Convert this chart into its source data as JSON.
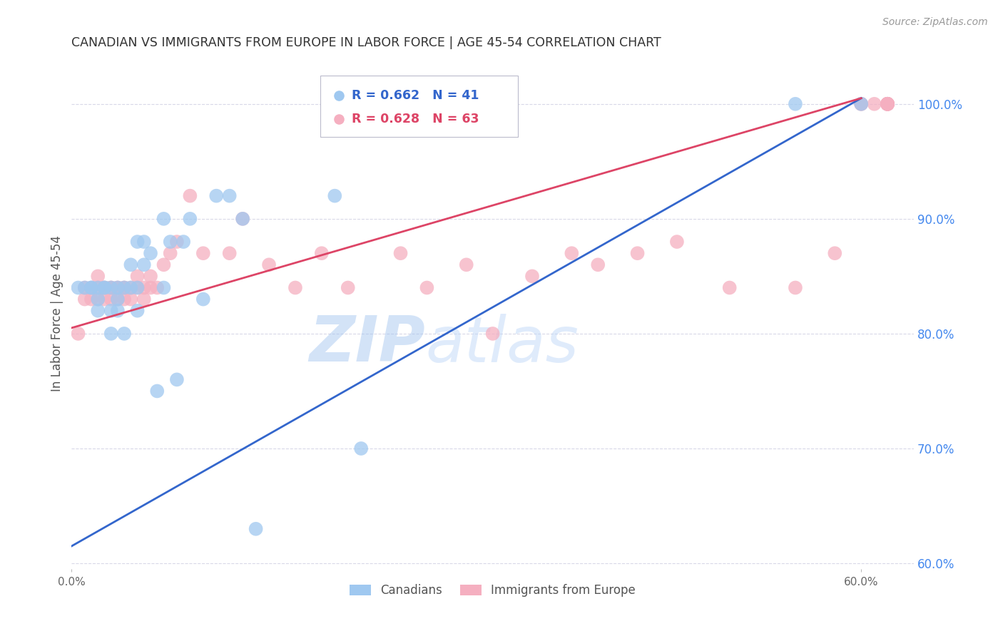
{
  "title": "CANADIAN VS IMMIGRANTS FROM EUROPE IN LABOR FORCE | AGE 45-54 CORRELATION CHART",
  "source": "Source: ZipAtlas.com",
  "ylabel": "In Labor Force | Age 45-54",
  "right_yticks": [
    0.6,
    0.7,
    0.8,
    0.9,
    1.0
  ],
  "right_yticklabels": [
    "60.0%",
    "70.0%",
    "80.0%",
    "90.0%",
    "100.0%"
  ],
  "xlim": [
    0.0,
    0.64
  ],
  "ylim": [
    0.595,
    1.04
  ],
  "legend_blue_R": "R = 0.662",
  "legend_blue_N": "N = 41",
  "legend_pink_R": "R = 0.628",
  "legend_pink_N": "N = 63",
  "legend_label_blue": "Canadians",
  "legend_label_pink": "Immigrants from Europe",
  "blue_color": "#9fc8f0",
  "pink_color": "#f5afc0",
  "blue_line_color": "#3366cc",
  "pink_line_color": "#dd4466",
  "watermark": "ZIPatlas",
  "watermark_color": "#c8dcf4",
  "title_color": "#333333",
  "right_axis_color": "#4488ee",
  "grid_color": "#d8d8e8",
  "canadians_x": [
    0.005,
    0.01,
    0.015,
    0.015,
    0.02,
    0.02,
    0.02,
    0.025,
    0.025,
    0.03,
    0.03,
    0.03,
    0.035,
    0.035,
    0.035,
    0.04,
    0.04,
    0.045,
    0.045,
    0.05,
    0.05,
    0.05,
    0.055,
    0.055,
    0.06,
    0.065,
    0.07,
    0.07,
    0.075,
    0.08,
    0.085,
    0.09,
    0.1,
    0.11,
    0.12,
    0.13,
    0.14,
    0.2,
    0.22,
    0.55,
    0.6
  ],
  "canadians_y": [
    0.84,
    0.84,
    0.84,
    0.84,
    0.82,
    0.83,
    0.84,
    0.84,
    0.84,
    0.8,
    0.82,
    0.84,
    0.82,
    0.83,
    0.84,
    0.8,
    0.84,
    0.84,
    0.86,
    0.82,
    0.84,
    0.88,
    0.86,
    0.88,
    0.87,
    0.75,
    0.84,
    0.9,
    0.88,
    0.76,
    0.88,
    0.9,
    0.83,
    0.92,
    0.92,
    0.9,
    0.63,
    0.92,
    0.7,
    1.0,
    1.0
  ],
  "immigrants_x": [
    0.005,
    0.01,
    0.01,
    0.015,
    0.015,
    0.02,
    0.02,
    0.02,
    0.025,
    0.025,
    0.025,
    0.03,
    0.03,
    0.03,
    0.035,
    0.035,
    0.035,
    0.04,
    0.04,
    0.04,
    0.045,
    0.045,
    0.05,
    0.05,
    0.055,
    0.055,
    0.06,
    0.06,
    0.065,
    0.07,
    0.075,
    0.08,
    0.09,
    0.1,
    0.12,
    0.13,
    0.15,
    0.17,
    0.19,
    0.21,
    0.25,
    0.27,
    0.3,
    0.32,
    0.35,
    0.38,
    0.4,
    0.43,
    0.46,
    0.5,
    0.55,
    0.58,
    0.6,
    0.6,
    0.61,
    0.62,
    0.62,
    0.62,
    0.62,
    0.62,
    0.62,
    0.62,
    0.62
  ],
  "immigrants_y": [
    0.8,
    0.83,
    0.84,
    0.83,
    0.84,
    0.83,
    0.84,
    0.85,
    0.83,
    0.84,
    0.84,
    0.83,
    0.84,
    0.84,
    0.83,
    0.84,
    0.84,
    0.83,
    0.84,
    0.84,
    0.83,
    0.84,
    0.84,
    0.85,
    0.83,
    0.84,
    0.84,
    0.85,
    0.84,
    0.86,
    0.87,
    0.88,
    0.92,
    0.87,
    0.87,
    0.9,
    0.86,
    0.84,
    0.87,
    0.84,
    0.87,
    0.84,
    0.86,
    0.8,
    0.85,
    0.87,
    0.86,
    0.87,
    0.88,
    0.84,
    0.84,
    0.87,
    1.0,
    1.0,
    1.0,
    1.0,
    1.0,
    1.0,
    1.0,
    1.0,
    1.0,
    1.0,
    1.0
  ],
  "blue_line_x0": 0.0,
  "blue_line_y0": 0.615,
  "blue_line_x1": 0.6,
  "blue_line_y1": 1.005,
  "pink_line_x0": 0.0,
  "pink_line_y0": 0.805,
  "pink_line_x1": 0.6,
  "pink_line_y1": 1.005
}
